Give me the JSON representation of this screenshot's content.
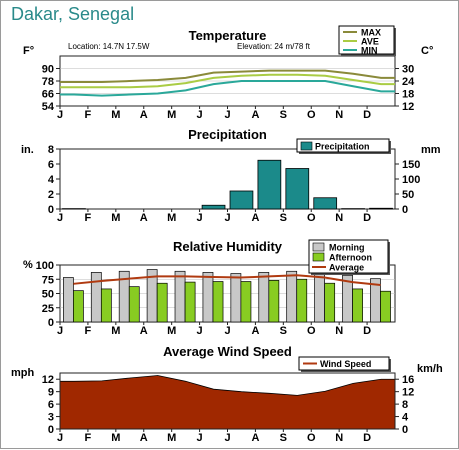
{
  "page": {
    "title": "Dakar, Senegal"
  },
  "months": [
    "J",
    "F",
    "M",
    "A",
    "M",
    "J",
    "J",
    "A",
    "S",
    "O",
    "N",
    "D"
  ],
  "colors": {
    "max": "#8a8a3a",
    "ave": "#aacc44",
    "min": "#2aa89a",
    "precip": "#1b8a8a",
    "morning": "#c8c8c8",
    "afternoon": "#88cc22",
    "average_line": "#b03a10",
    "wind": "#a02800",
    "grid": "#222222",
    "legend_bg": "#ffffff"
  },
  "chart_data": [
    {
      "type": "line",
      "id": "temperature",
      "title": "Temperature",
      "subtitle_left": "Location: 14.7N 17.5W",
      "subtitle_right": "Elevation: 24 m/78 ft",
      "ylabel_left": "F°",
      "ylabel_right": "C°",
      "ylim": [
        54,
        102
      ],
      "yticks_left": [
        54,
        66,
        78,
        90
      ],
      "yticks_right": [
        12,
        18,
        24,
        30
      ],
      "categories": [
        "J",
        "F",
        "M",
        "A",
        "M",
        "J",
        "J",
        "A",
        "S",
        "O",
        "N",
        "D"
      ],
      "legend": [
        "MAX",
        "AVE",
        "MIN"
      ],
      "series": [
        {
          "name": "MAX",
          "values": [
            77,
            77,
            78,
            79,
            81,
            86,
            87,
            88,
            88,
            88,
            85,
            81
          ]
        },
        {
          "name": "AVE",
          "values": [
            72,
            72,
            72,
            73,
            76,
            81,
            83,
            84,
            84,
            83,
            79,
            75
          ]
        },
        {
          "name": "MIN",
          "values": [
            65,
            64,
            65,
            66,
            69,
            75,
            78,
            78,
            78,
            78,
            73,
            68
          ]
        }
      ]
    },
    {
      "type": "bar",
      "id": "precipitation",
      "title": "Precipitation",
      "ylabel_left": "in.",
      "ylabel_right": "mm",
      "ylim": [
        0,
        8
      ],
      "yticks_left": [
        0,
        2,
        4,
        6,
        8
      ],
      "yticks_right": [
        0,
        50,
        100,
        150
      ],
      "categories": [
        "J",
        "F",
        "M",
        "A",
        "M",
        "J",
        "J",
        "A",
        "S",
        "O",
        "N",
        "D"
      ],
      "legend": [
        "Precipitation"
      ],
      "series": [
        {
          "name": "Precipitation",
          "values": [
            0.05,
            0,
            0,
            0,
            0,
            0.5,
            2.4,
            6.5,
            5.4,
            1.5,
            0.05,
            0.1
          ]
        }
      ]
    },
    {
      "type": "bar",
      "id": "humidity",
      "title": "Relative Humidity",
      "ylabel_left": "%",
      "ylim": [
        0,
        100
      ],
      "yticks_left": [
        0,
        25,
        50,
        75,
        100
      ],
      "categories": [
        "J",
        "F",
        "M",
        "A",
        "M",
        "J",
        "J",
        "A",
        "S",
        "O",
        "N",
        "D"
      ],
      "legend": [
        "Morning",
        "Afternoon",
        "Average"
      ],
      "series": [
        {
          "name": "Morning",
          "values": [
            78,
            87,
            89,
            92,
            89,
            87,
            85,
            87,
            89,
            88,
            82,
            76
          ]
        },
        {
          "name": "Afternoon",
          "values": [
            55,
            58,
            62,
            68,
            70,
            71,
            71,
            73,
            75,
            68,
            58,
            54
          ]
        },
        {
          "name": "Average",
          "values": [
            67,
            72,
            76,
            80,
            80,
            79,
            78,
            80,
            82,
            78,
            70,
            65
          ]
        }
      ]
    },
    {
      "type": "area",
      "id": "wind",
      "title": "Average Wind Speed",
      "ylabel_left": "mph",
      "ylabel_right": "km/h",
      "ylim": [
        0,
        13.5
      ],
      "yticks_left": [
        0,
        3,
        6,
        9,
        12
      ],
      "yticks_right": [
        0,
        4,
        8,
        12,
        16
      ],
      "categories": [
        "J",
        "F",
        "M",
        "A",
        "M",
        "J",
        "J",
        "A",
        "S",
        "O",
        "N",
        "D"
      ],
      "legend": [
        "Wind Speed"
      ],
      "series": [
        {
          "name": "Wind Speed",
          "values": [
            11.5,
            11.6,
            12.3,
            12.9,
            11.5,
            9.6,
            9.0,
            8.6,
            8.1,
            9.1,
            11.0,
            12.0
          ]
        }
      ]
    }
  ]
}
